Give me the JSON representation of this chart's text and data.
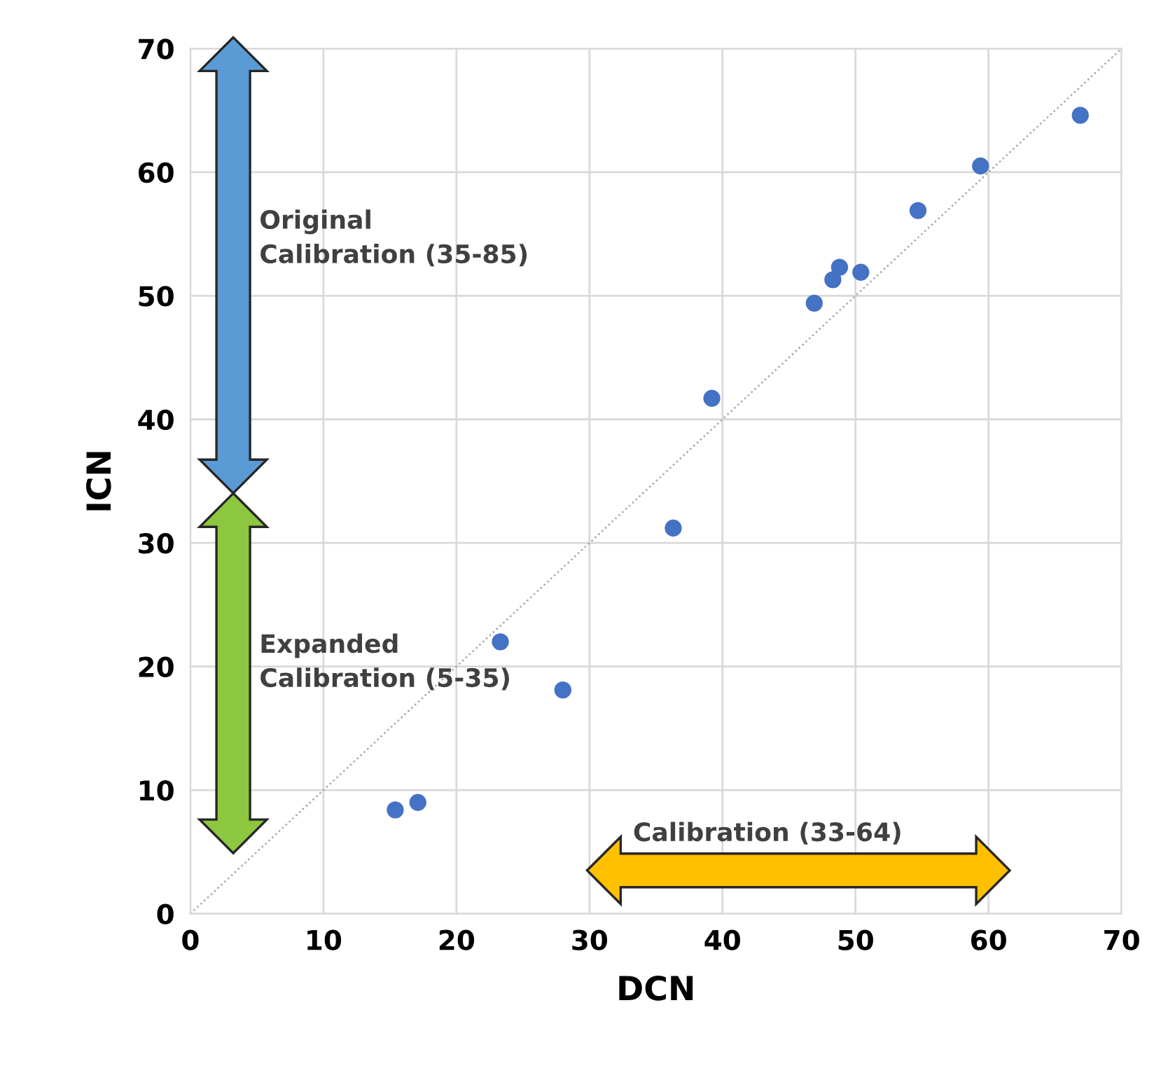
{
  "chart_data": {
    "type": "scatter",
    "xlabel": "DCN",
    "ylabel": "ICN",
    "xlim": [
      0,
      70
    ],
    "ylim": [
      0,
      70
    ],
    "xticks": [
      0,
      10,
      20,
      30,
      40,
      50,
      60,
      70
    ],
    "yticks": [
      0,
      10,
      20,
      30,
      40,
      50,
      60,
      70
    ],
    "grid": true,
    "legend": false,
    "series": [
      {
        "marker": "circle",
        "color": "#4472c4",
        "x": [
          15.4,
          17.1,
          23.3,
          28.0,
          36.3,
          39.2,
          46.9,
          48.3,
          48.8,
          50.4,
          54.7,
          59.4,
          66.9
        ],
        "values": [
          8.4,
          9.0,
          22.0,
          18.1,
          31.2,
          41.7,
          49.4,
          51.3,
          52.3,
          51.9,
          56.9,
          60.5,
          64.6
        ]
      },
      {
        "type": "line",
        "marker": "none",
        "color": "#a6a6a6",
        "line_style": "dotted",
        "x": [
          0,
          70
        ],
        "values": [
          0,
          70
        ]
      }
    ],
    "annotations": [
      "Original\nCalibration (35-85)",
      "Expanded\nCalibration (5-35)",
      "Calibration (33-64)"
    ]
  }
}
